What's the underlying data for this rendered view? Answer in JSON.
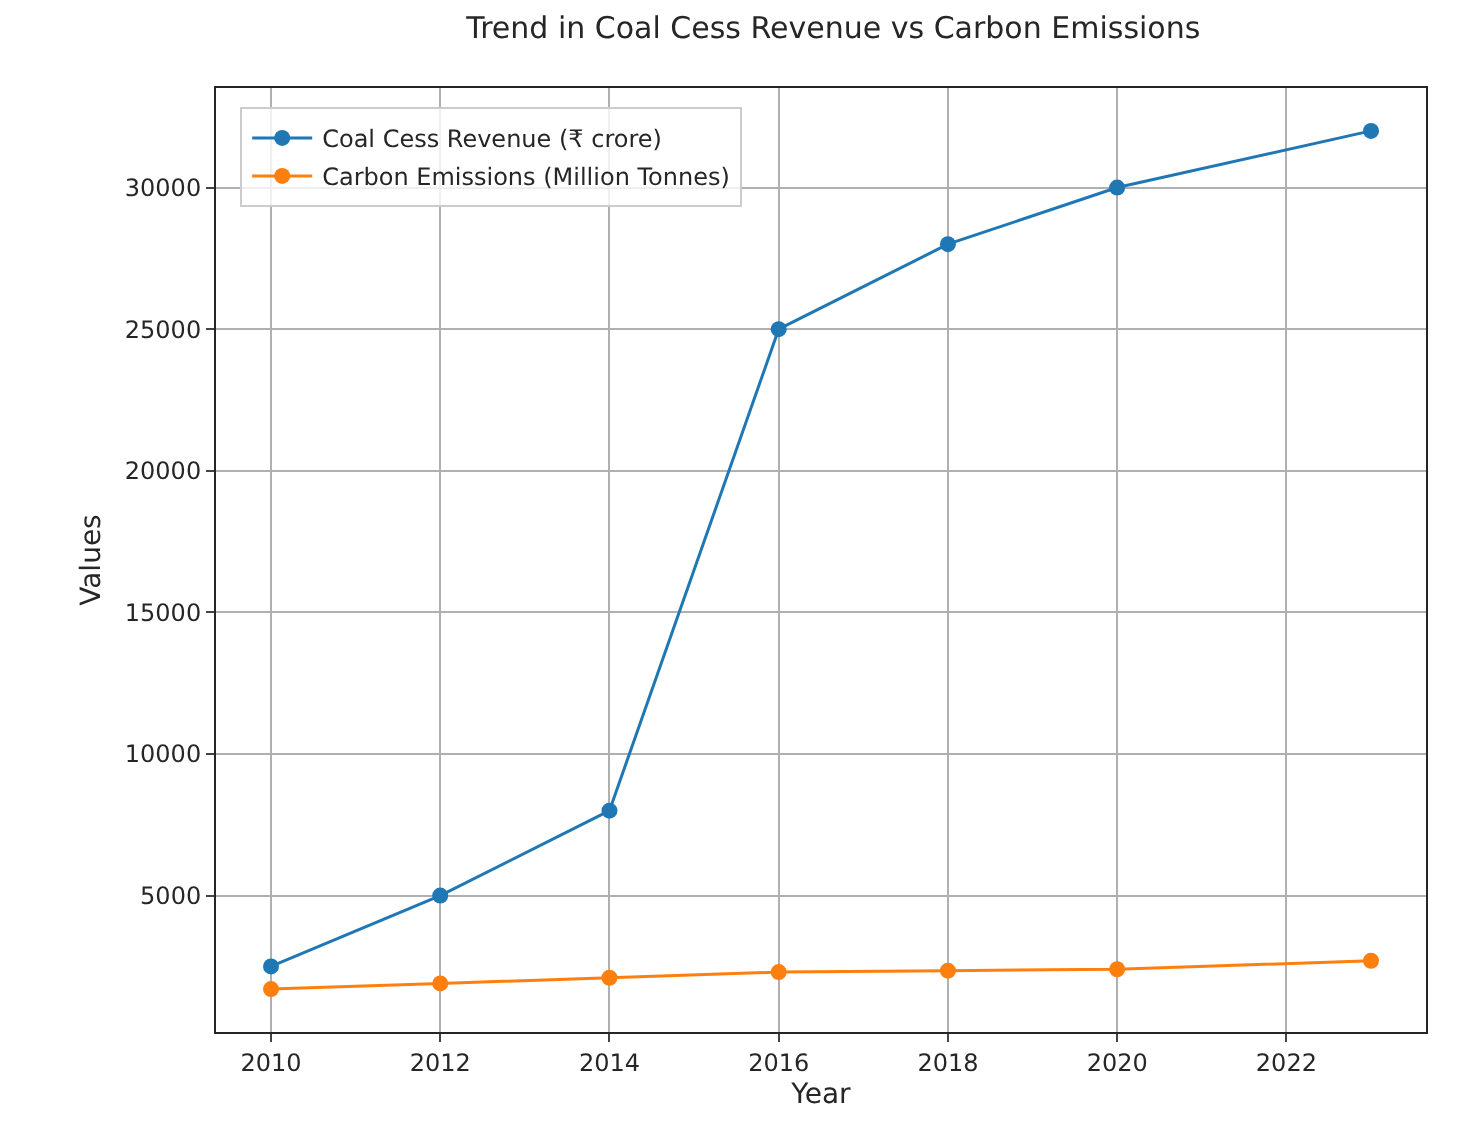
{
  "chart_data": {
    "type": "line",
    "title": "Trend in Coal Cess Revenue vs Carbon Emissions",
    "xlabel": "Year",
    "ylabel": "Values",
    "x": [
      2010,
      2012,
      2014,
      2016,
      2018,
      2020,
      2023
    ],
    "series": [
      {
        "name": "Coal Cess Revenue (₹ crore)",
        "color": "#1f77b4",
        "values": [
          2500,
          5000,
          8000,
          25000,
          28000,
          30000,
          32000
        ]
      },
      {
        "name": "Carbon Emissions (Million Tonnes)",
        "color": "#ff7f0e",
        "values": [
          1700,
          1900,
          2100,
          2300,
          2350,
          2400,
          2700
        ]
      }
    ],
    "xlim": [
      2009.35,
      2023.65
    ],
    "xticks": [
      2010,
      2012,
      2014,
      2016,
      2018,
      2020,
      2022
    ],
    "ylim": [
      185,
      33515
    ],
    "yticks": [
      5000,
      10000,
      15000,
      20000,
      25000,
      30000
    ],
    "grid": true,
    "legend": "top left",
    "marker": "circle",
    "line_style": "solid"
  }
}
